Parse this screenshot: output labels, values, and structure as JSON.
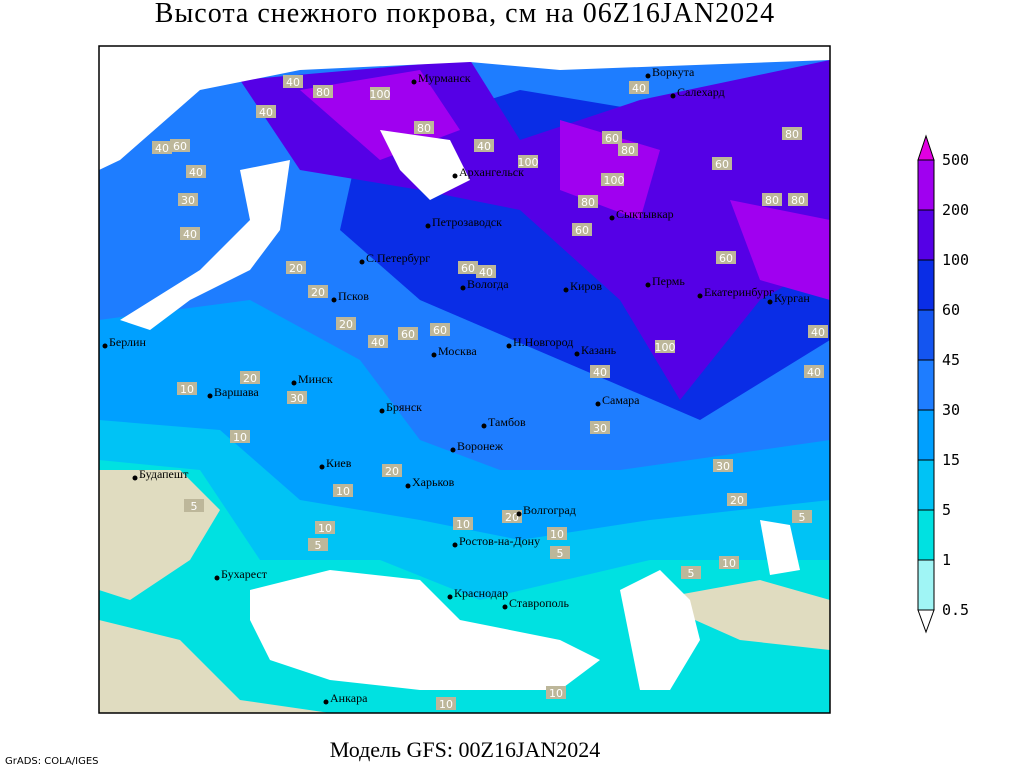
{
  "title": "Высота снежного покрова, см на 06Z16JAN2024",
  "footer": "Модель GFS: 00Z16JAN2024",
  "credit": "GrADS: COLA/IGES",
  "colorbar": {
    "levels": [
      0.5,
      1,
      5,
      15,
      30,
      45,
      60,
      100,
      200,
      500
    ],
    "colors": [
      "#ffffff",
      "#a0f5f5",
      "#00e1e1",
      "#00c3f5",
      "#00a0ff",
      "#1e7dff",
      "#1455f0",
      "#0a2de6",
      "#5500e6",
      "#a000f0",
      "#e100e1"
    ]
  },
  "cities": [
    "Мурманск",
    "Воркута",
    "Салехард",
    "Архангельск",
    "Петрозаводск",
    "Сыктывкар",
    "С.Петербург",
    "Псков",
    "Вологда",
    "Киров",
    "Пермь",
    "Екатеринбург",
    "Курган",
    "Берлин",
    "Варшава",
    "Минск",
    "Москва",
    "Н.Новгород",
    "Казань",
    "Брянск",
    "Тамбов",
    "Самара",
    "Киев",
    "Воронеж",
    "Харьков",
    "Волгоград",
    "Будапешт",
    "Ростов-на-Дону",
    "Бухарест",
    "Краснодар",
    "Ставрополь",
    "Анкара"
  ],
  "contour_labels": [
    40,
    80,
    100,
    40,
    60,
    40,
    40,
    30,
    40,
    100,
    80,
    60,
    80,
    40,
    60,
    40,
    80,
    100,
    80,
    60,
    60,
    80,
    80,
    60,
    40,
    20,
    20,
    20,
    40,
    60,
    60,
    40,
    60,
    100,
    40,
    40,
    10,
    20,
    30,
    10,
    30,
    10,
    20,
    10,
    30,
    20,
    10,
    20,
    10,
    5,
    5,
    5,
    10,
    5,
    5,
    10,
    10
  ]
}
